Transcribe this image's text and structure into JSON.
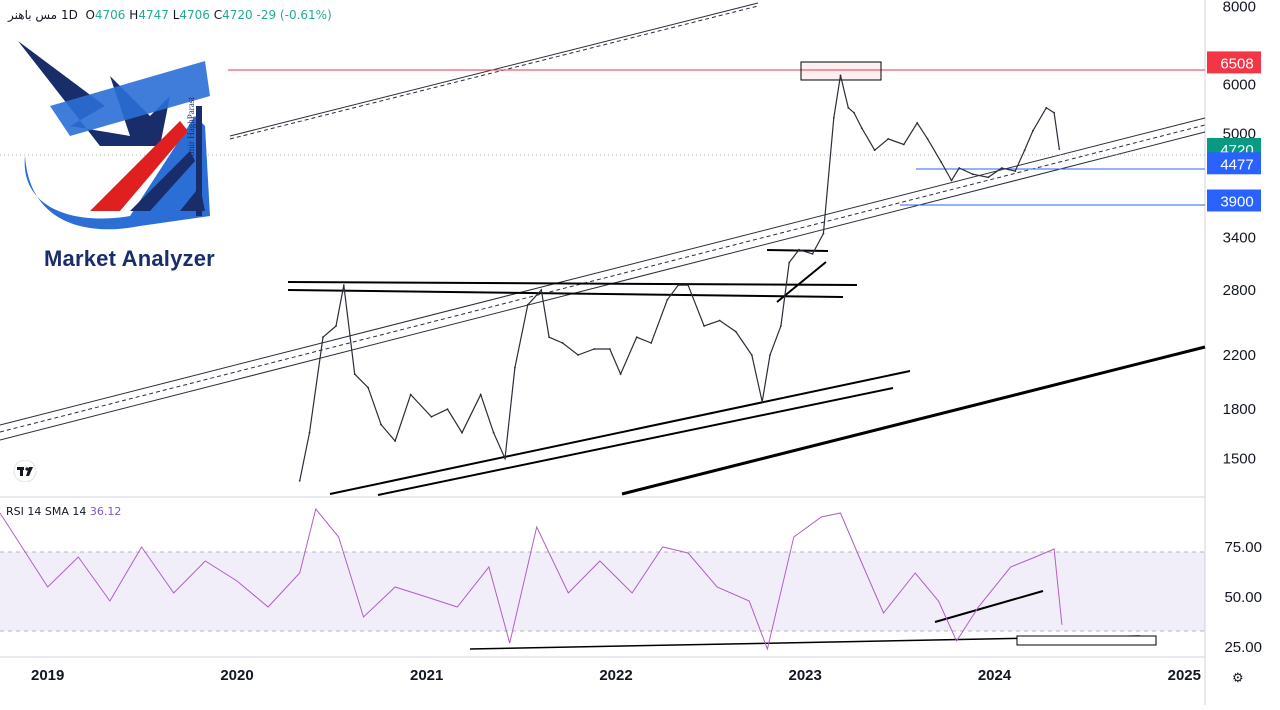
{
  "header": {
    "symbol": "مس باهنر",
    "interval": "1D",
    "open_label": "O",
    "open_value": "4706",
    "high_label": "H",
    "high_value": "4747",
    "low_label": "L",
    "low_value": "4706",
    "close_label": "C",
    "close_value": "4720",
    "change": "-29 (-0.61%)"
  },
  "logo": {
    "title": "Market Analyzer",
    "subtitle": "Amir HaghParast"
  },
  "rsi_header": {
    "label": "RSI 14 SMA 14",
    "value": "36.12"
  },
  "chart_data": [
    {
      "type": "line",
      "title": "",
      "scale": "log",
      "ylim": [
        1300,
        8200
      ],
      "xlim": [
        "2018-10-01",
        "2025-02-10"
      ],
      "price_ticks": [
        8000,
        6000,
        5000,
        3400,
        2800,
        2200,
        1800,
        1500
      ],
      "x_ticks": [
        "2019",
        "2020",
        "2021",
        "2022",
        "2023",
        "2024",
        "2025"
      ],
      "price_labels": [
        {
          "text": "6508",
          "value": 6508,
          "color": "#f23645"
        },
        {
          "text": "4720",
          "value": 4720,
          "color": "#089981"
        },
        {
          "text": "4477",
          "value": 4477,
          "color": "#2962ff"
        },
        {
          "text": "3900",
          "value": 3900,
          "color": "#2962ff"
        }
      ],
      "series": [
        {
          "values_x": [
            "2020-05-01",
            "2020-05-20",
            "2020-06-15",
            "2020-07-10",
            "2020-07-25",
            "2020-08-15",
            "2020-09-10",
            "2020-10-05",
            "2020-11-01",
            "2020-12-01",
            "2021-01-10",
            "2021-02-10",
            "2021-03-10",
            "2021-04-15",
            "2021-05-10",
            "2021-06-01",
            "2021-06-20",
            "2021-07-15",
            "2021-08-10",
            "2021-08-25",
            "2021-09-20",
            "2021-10-20",
            "2021-11-20",
            "2021-12-20",
            "2022-01-10",
            "2022-02-10",
            "2022-03-10",
            "2022-04-10",
            "2022-05-01",
            "2022-05-20",
            "2022-06-20",
            "2022-07-20",
            "2022-08-20",
            "2022-09-20",
            "2022-10-10",
            "2022-10-25",
            "2022-11-15",
            "2022-12-01",
            "2022-12-20",
            "2023-01-15",
            "2023-02-05",
            "2023-02-25",
            "2023-03-10",
            "2023-03-25",
            "2023-04-05",
            "2023-04-20",
            "2023-05-15",
            "2023-06-10",
            "2023-07-10",
            "2023-08-05",
            "2023-08-25",
            "2023-09-20",
            "2023-10-10",
            "2023-10-25",
            "2023-11-20",
            "2023-12-20",
            "2024-01-15",
            "2024-02-10",
            "2024-02-28",
            "2024-03-15",
            "2024-04-10",
            "2024-04-25",
            "2024-05-05"
          ],
          "values": [
            1380,
            1650,
            2350,
            2450,
            2850,
            2050,
            1950,
            1700,
            1600,
            1900,
            1750,
            1800,
            1650,
            1900,
            1650,
            1500,
            2100,
            2650,
            2800,
            2350,
            2300,
            2200,
            2250,
            2250,
            2050,
            2350,
            2300,
            2700,
            2850,
            2850,
            2450,
            2500,
            2400,
            2200,
            1850,
            2200,
            2450,
            3100,
            3250,
            3200,
            3450,
            5300,
            6200,
            5500,
            5400,
            5100,
            4700,
            4900,
            4800,
            5200,
            4900,
            4500,
            4200,
            4400,
            4300,
            4250,
            4400,
            4350,
            4700,
            5050,
            5500,
            5400,
            4720
          ]
        }
      ]
    },
    {
      "type": "line",
      "title": "RSI 14 SMA 14",
      "ylim": [
        20,
        100
      ],
      "y_ticks": [
        75,
        50,
        25
      ],
      "y_tick_labels": [
        "75.00",
        "50.00",
        "25.00"
      ],
      "band": [
        30,
        70
      ],
      "series": [
        {
          "name": "RSI 14",
          "values_x": [
            "2018-10-01",
            "2019-01-01",
            "2019-03-01",
            "2019-05-01",
            "2019-07-01",
            "2019-09-01",
            "2019-11-01",
            "2020-01-01",
            "2020-03-01",
            "2020-05-01",
            "2020-06-01",
            "2020-07-15",
            "2020-09-01",
            "2020-11-01",
            "2021-01-01",
            "2021-03-01",
            "2021-05-01",
            "2021-06-10",
            "2021-08-01",
            "2021-10-01",
            "2021-12-01",
            "2022-02-01",
            "2022-04-01",
            "2022-05-20",
            "2022-07-15",
            "2022-09-15",
            "2022-10-20",
            "2022-12-10",
            "2023-02-01",
            "2023-03-10",
            "2023-04-15",
            "2023-06-01",
            "2023-08-01",
            "2023-09-15",
            "2023-10-20",
            "2023-12-01",
            "2024-02-01",
            "2024-03-20",
            "2024-04-25",
            "2024-05-10"
          ],
          "values": [
            92,
            55,
            70,
            48,
            75,
            52,
            68,
            58,
            45,
            62,
            94,
            80,
            40,
            55,
            50,
            45,
            65,
            27,
            85,
            52,
            68,
            52,
            75,
            72,
            55,
            48,
            24,
            80,
            90,
            92,
            70,
            42,
            62,
            48,
            28,
            45,
            65,
            70,
            74,
            36.12
          ]
        }
      ]
    }
  ]
}
